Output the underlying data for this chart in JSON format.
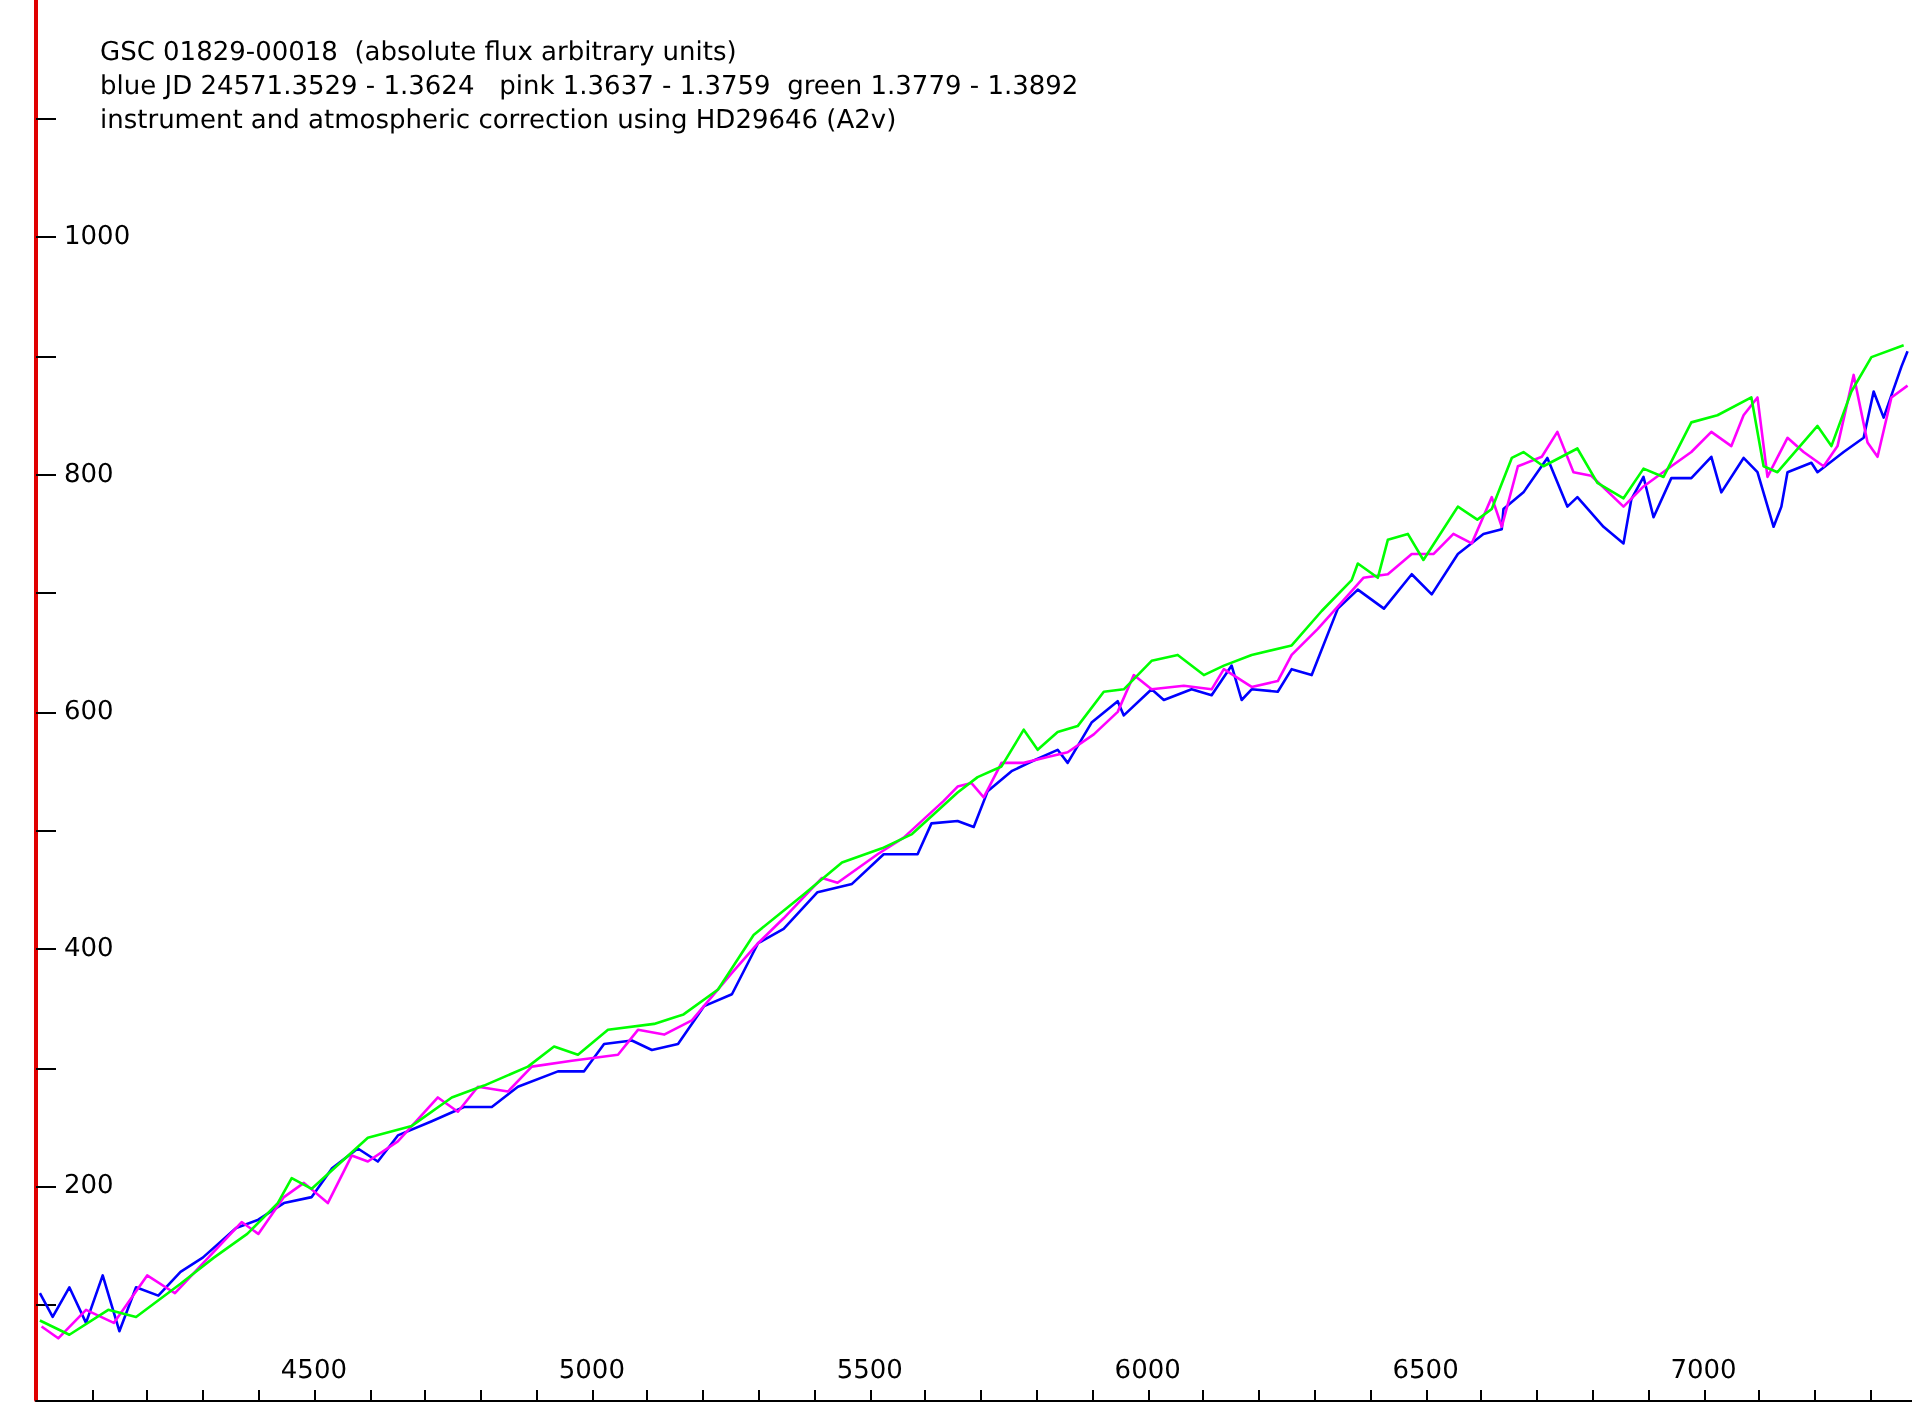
{
  "chart_data": {
    "type": "line",
    "title": "GSC 01829-00018  (absolute flux arbitrary units)",
    "annotations": [
      "blue JD 24571.3529 - 1.3624   pink 1.3637 - 1.3759  green 1.3779 - 1.3892",
      "instrument and atmospheric correction using HD29646 (A2v)"
    ],
    "xlim": [
      4000,
      7375
    ],
    "ylim": [
      20,
      1200
    ],
    "xticks": [
      {
        "value": 4100,
        "label": null
      },
      {
        "value": 4200,
        "label": null
      },
      {
        "value": 4300,
        "label": null
      },
      {
        "value": 4400,
        "label": null
      },
      4500,
      {
        "value": 4600,
        "label": null
      },
      {
        "value": 4700,
        "label": null
      },
      {
        "value": 4800,
        "label": null
      },
      {
        "value": 4900,
        "label": null
      },
      5000,
      {
        "value": 5100,
        "label": null
      },
      {
        "value": 5200,
        "label": null
      },
      {
        "value": 5300,
        "label": null
      },
      {
        "value": 5400,
        "label": null
      },
      5500,
      {
        "value": 5600,
        "label": null
      },
      {
        "value": 5700,
        "label": null
      },
      {
        "value": 5800,
        "label": null
      },
      {
        "value": 5900,
        "label": null
      },
      6000,
      {
        "value": 6100,
        "label": null
      },
      {
        "value": 6200,
        "label": null
      },
      {
        "value": 6300,
        "label": null
      },
      {
        "value": 6400,
        "label": null
      },
      6500,
      {
        "value": 6600,
        "label": null
      },
      {
        "value": 6700,
        "label": null
      },
      {
        "value": 6800,
        "label": null
      },
      {
        "value": 6900,
        "label": null
      },
      7000,
      {
        "value": 7100,
        "label": null
      },
      {
        "value": 7200,
        "label": null
      },
      {
        "value": 7300,
        "label": null
      }
    ],
    "yticks": [
      {
        "value": 100,
        "label": null
      },
      200,
      {
        "value": 300,
        "label": null
      },
      400,
      {
        "value": 500,
        "label": null
      },
      600,
      {
        "value": 700,
        "label": null
      },
      800,
      {
        "value": 900,
        "label": null
      },
      1000,
      {
        "value": 1100,
        "label": null
      }
    ],
    "grid": false,
    "marker": "none",
    "line_style": "solid",
    "series": [
      {
        "color": "#0000ff",
        "x": [
          4007,
          4030,
          4060,
          4090,
          4120,
          4150,
          4180,
          4220,
          4260,
          4300,
          4360,
          4400,
          4446,
          4496,
          4532,
          4579,
          4615,
          4651,
          4712,
          4770,
          4820,
          4867,
          4939,
          4986,
          5022,
          5072,
          5108,
          5155,
          5202,
          5252,
          5299,
          5345,
          5406,
          5468,
          5525,
          5586,
          5611,
          5658,
          5687,
          5712,
          5755,
          5795,
          5838,
          5856,
          5899,
          5946,
          5957,
          6007,
          6029,
          6079,
          6115,
          6151,
          6169,
          6187,
          6234,
          6259,
          6295,
          6342,
          6378,
          6425,
          6475,
          6511,
          6558,
          6604,
          6637,
          6640,
          6676,
          6719,
          6755,
          6773,
          6820,
          6856,
          6870,
          6892,
          6910,
          6942,
          6978,
          7014,
          7032,
          7072,
          7097,
          7126,
          7140,
          7151,
          7194,
          7205,
          7252,
          7288,
          7306,
          7324,
          7356,
          7367
        ],
        "values": [
          110,
          90,
          115,
          85,
          125,
          78,
          115,
          108,
          128,
          140,
          165,
          172,
          186,
          191,
          215,
          232,
          221,
          243,
          255,
          267,
          267,
          284,
          297,
          297,
          320,
          323,
          315,
          320,
          352,
          362,
          405,
          417,
          448,
          455,
          480,
          480,
          506,
          508,
          503,
          533,
          550,
          559,
          568,
          557,
          591,
          609,
          597,
          619,
          610,
          619,
          614,
          639,
          610,
          619,
          617,
          636,
          631,
          687,
          703,
          687,
          716,
          699,
          733,
          750,
          754,
          771,
          785,
          814,
          773,
          781,
          756,
          742,
          779,
          798,
          764,
          797,
          797,
          815,
          785,
          814,
          802,
          756,
          773,
          802,
          810,
          802,
          819,
          831,
          870,
          848,
          891,
          904
        ]
      },
      {
        "color": "#ff00ff",
        "x": [
          4010,
          4040,
          4090,
          4140,
          4200,
          4250,
          4310,
          4370,
          4400,
          4446,
          4482,
          4525,
          4568,
          4597,
          4651,
          4723,
          4759,
          4795,
          4849,
          4892,
          4964,
          5047,
          5083,
          5130,
          5180,
          5252,
          5299,
          5345,
          5414,
          5442,
          5514,
          5561,
          5633,
          5658,
          5683,
          5705,
          5737,
          5777,
          5820,
          5856,
          5903,
          5946,
          5975,
          6007,
          6065,
          6115,
          6137,
          6187,
          6234,
          6259,
          6306,
          6352,
          6388,
          6432,
          6475,
          6514,
          6550,
          6583,
          6619,
          6637,
          6666,
          6709,
          6737,
          6766,
          6798,
          6856,
          6892,
          6942,
          6978,
          7014,
          7050,
          7072,
          7097,
          7115,
          7151,
          7180,
          7216,
          7241,
          7270,
          7295,
          7313,
          7338,
          7367
        ],
        "values": [
          82,
          72,
          96,
          85,
          125,
          110,
          140,
          170,
          160,
          191,
          203,
          186,
          226,
          221,
          238,
          275,
          263,
          284,
          280,
          301,
          306,
          311,
          332,
          328,
          340,
          380,
          405,
          426,
          460,
          456,
          480,
          494,
          525,
          537,
          540,
          528,
          557,
          557,
          562,
          566,
          581,
          600,
          631,
          619,
          622,
          619,
          636,
          621,
          626,
          648,
          670,
          694,
          713,
          716,
          733,
          733,
          750,
          742,
          781,
          756,
          807,
          815,
          836,
          802,
          799,
          773,
          790,
          807,
          819,
          836,
          824,
          850,
          865,
          798,
          831,
          819,
          807,
          824,
          884,
          827,
          815,
          865,
          875
        ]
      },
      {
        "color": "#00ff00",
        "x": [
          4007,
          4060,
          4130,
          4180,
          4260,
          4320,
          4380,
          4435,
          4460,
          4496,
          4597,
          4676,
          4748,
          4806,
          4885,
          4932,
          4975,
          5029,
          5112,
          5165,
          5227,
          5291,
          5381,
          5450,
          5522,
          5576,
          5658,
          5694,
          5737,
          5777,
          5802,
          5838,
          5874,
          5921,
          5957,
          6007,
          6054,
          6101,
          6137,
          6187,
          6259,
          6313,
          6367,
          6378,
          6414,
          6432,
          6468,
          6496,
          6558,
          6593,
          6619,
          6655,
          6676,
          6712,
          6773,
          6809,
          6856,
          6892,
          6928,
          6978,
          7025,
          7086,
          7108,
          7133,
          7205,
          7230,
          7266,
          7302,
          7360
        ],
        "values": [
          87,
          75,
          96,
          90,
          118,
          140,
          160,
          186,
          207,
          198,
          241,
          251,
          275,
          285,
          301,
          318,
          311,
          332,
          337,
          345,
          366,
          412,
          446,
          473,
          485,
          497,
          532,
          545,
          554,
          585,
          568,
          583,
          588,
          617,
          619,
          643,
          648,
          631,
          639,
          648,
          656,
          685,
          711,
          725,
          713,
          745,
          750,
          728,
          773,
          762,
          771,
          814,
          819,
          807,
          822,
          793,
          780,
          805,
          798,
          844,
          850,
          865,
          807,
          802,
          841,
          824,
          870,
          899,
          909
        ]
      }
    ]
  }
}
